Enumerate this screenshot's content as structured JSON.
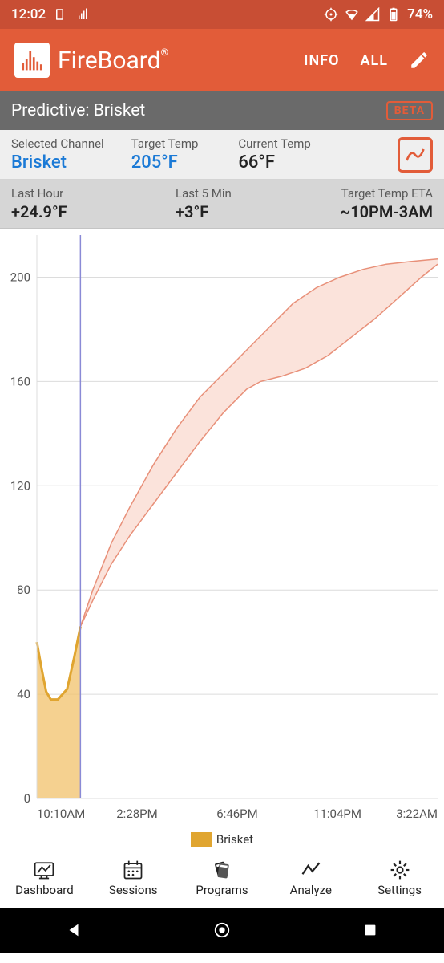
{
  "statusbar": {
    "time": "12:02",
    "battery_pct": "74%"
  },
  "header": {
    "brand": "FireBoard",
    "info_label": "INFO",
    "all_label": "ALL"
  },
  "title": {
    "text": "Predictive: Brisket",
    "badge": "BETA"
  },
  "strip1": {
    "channel_label": "Selected Channel",
    "channel_value": "Brisket",
    "target_label": "Target Temp",
    "target_value": "205°F",
    "current_label": "Current Temp",
    "current_value": "66°F"
  },
  "strip2": {
    "hour_label": "Last Hour",
    "hour_value": "+24.9°F",
    "five_label": "Last 5 Min",
    "five_value": "+3°F",
    "eta_label": "Target Temp ETA",
    "eta_value": "~10PM-3AM"
  },
  "chart": {
    "colors": {
      "actual_fill": "#f1c26b",
      "actual_stroke": "#e0a530",
      "pred_fill": "#fbe3db",
      "pred_stroke": "#e89079",
      "now_line": "#8a8ad6",
      "grid": "#dcdcdc",
      "axis_text": "#555555"
    },
    "y": {
      "min": 0,
      "max": 210,
      "ticks": [
        0,
        40,
        80,
        120,
        160,
        200
      ]
    },
    "x_labels": [
      "10:10AM",
      "2:28PM",
      "6:46PM",
      "11:04PM",
      "3:22AM"
    ],
    "x_range": [
      0,
      17.2
    ],
    "now_x": 1.87,
    "actual": [
      [
        0.0,
        60
      ],
      [
        0.2,
        50
      ],
      [
        0.4,
        41
      ],
      [
        0.6,
        38
      ],
      [
        0.9,
        38
      ],
      [
        1.3,
        42
      ],
      [
        1.6,
        54
      ],
      [
        1.87,
        66
      ]
    ],
    "band_upper": [
      [
        1.87,
        66
      ],
      [
        2.4,
        80
      ],
      [
        3.2,
        98
      ],
      [
        4.0,
        112
      ],
      [
        5.0,
        128
      ],
      [
        6.0,
        142
      ],
      [
        7.0,
        154
      ],
      [
        8.0,
        163
      ],
      [
        9.0,
        172
      ],
      [
        10.0,
        181
      ],
      [
        11.0,
        190
      ],
      [
        12.0,
        196
      ],
      [
        13.0,
        200
      ],
      [
        14.0,
        203
      ],
      [
        15.0,
        205
      ],
      [
        16.0,
        206
      ],
      [
        17.2,
        207
      ]
    ],
    "band_lower": [
      [
        1.87,
        66
      ],
      [
        2.4,
        76
      ],
      [
        3.2,
        90
      ],
      [
        4.0,
        101
      ],
      [
        5.0,
        113
      ],
      [
        6.0,
        125
      ],
      [
        7.0,
        137
      ],
      [
        8.0,
        148
      ],
      [
        9.0,
        157
      ],
      [
        9.6,
        160
      ],
      [
        10.5,
        162
      ],
      [
        11.5,
        165
      ],
      [
        12.5,
        170
      ],
      [
        13.5,
        177
      ],
      [
        14.5,
        184
      ],
      [
        15.5,
        192
      ],
      [
        16.5,
        200
      ],
      [
        17.2,
        205
      ]
    ],
    "legend_label": "Brisket"
  },
  "nav": {
    "dashboard": "Dashboard",
    "sessions": "Sessions",
    "programs": "Programs",
    "analyze": "Analyze",
    "settings": "Settings"
  }
}
